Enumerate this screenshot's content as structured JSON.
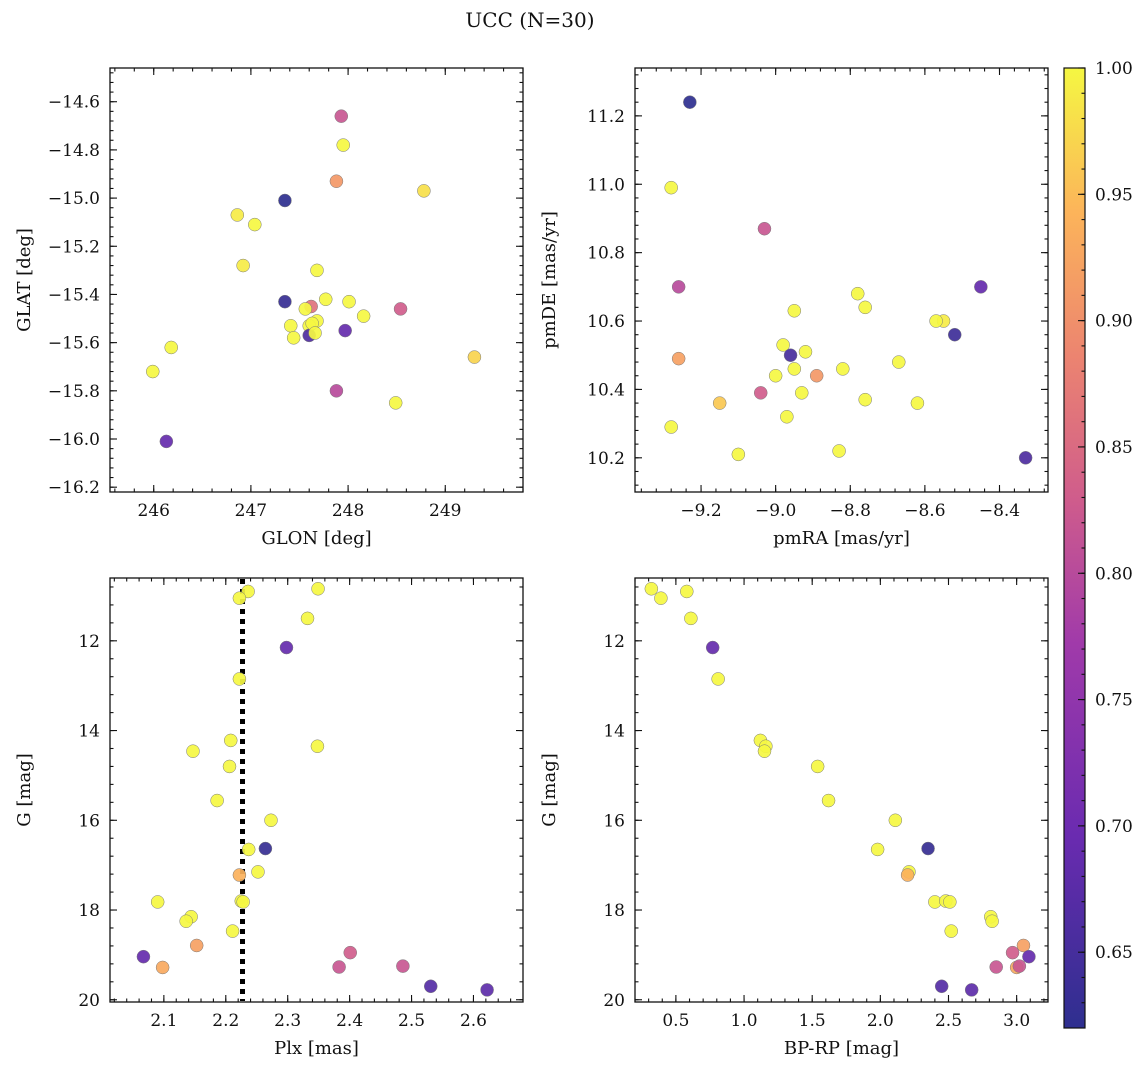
{
  "figure": {
    "title": "UCC (N=30)"
  },
  "colorbar": {
    "min": 0.62,
    "max": 1.0,
    "ticks": [
      0.65,
      0.7,
      0.75,
      0.8,
      0.85,
      0.9,
      0.95,
      1.0
    ],
    "tick_labels": [
      "0.65",
      "0.70",
      "0.75",
      "0.80",
      "0.85",
      "0.90",
      "0.95",
      "1.00"
    ],
    "colormap": "plasma"
  },
  "chart_data": [
    {
      "type": "scatter",
      "id": "sky",
      "xlabel": "GLON [deg]",
      "ylabel": "GLAT [deg]",
      "xlim": [
        245.55,
        249.8
      ],
      "ylim": [
        -16.22,
        -14.46
      ],
      "xticks": [
        246,
        247,
        248,
        249
      ],
      "xtick_labels": [
        "246",
        "247",
        "248",
        "249"
      ],
      "yticks": [
        -16.2,
        -16.0,
        -15.8,
        -15.6,
        -15.4,
        -15.2,
        -15.0,
        -14.8,
        -14.6
      ],
      "ytick_labels": [
        "−16.2",
        "−16.0",
        "−15.8",
        "−15.6",
        "−15.4",
        "−15.2",
        "−15.0",
        "−14.8",
        "−14.6"
      ],
      "points": [
        {
          "x": 247.93,
          "y": -14.66,
          "c": 0.82
        },
        {
          "x": 247.95,
          "y": -14.78,
          "c": 1.0
        },
        {
          "x": 247.88,
          "y": -14.93,
          "c": 0.91
        },
        {
          "x": 248.78,
          "y": -14.97,
          "c": 0.98
        },
        {
          "x": 247.35,
          "y": -15.01,
          "c": 0.62
        },
        {
          "x": 246.86,
          "y": -15.07,
          "c": 0.99
        },
        {
          "x": 247.04,
          "y": -15.11,
          "c": 1.0
        },
        {
          "x": 246.92,
          "y": -15.28,
          "c": 0.99
        },
        {
          "x": 247.68,
          "y": -15.3,
          "c": 1.0
        },
        {
          "x": 247.77,
          "y": -15.42,
          "c": 1.0
        },
        {
          "x": 247.35,
          "y": -15.43,
          "c": 0.63
        },
        {
          "x": 247.62,
          "y": -15.45,
          "c": 0.86
        },
        {
          "x": 247.56,
          "y": -15.46,
          "c": 1.0
        },
        {
          "x": 248.01,
          "y": -15.43,
          "c": 1.0
        },
        {
          "x": 248.54,
          "y": -15.46,
          "c": 0.83
        },
        {
          "x": 248.16,
          "y": -15.49,
          "c": 1.0
        },
        {
          "x": 247.68,
          "y": -15.51,
          "c": 1.0
        },
        {
          "x": 247.6,
          "y": -15.53,
          "c": 1.0
        },
        {
          "x": 247.41,
          "y": -15.53,
          "c": 1.0
        },
        {
          "x": 247.97,
          "y": -15.55,
          "c": 0.69
        },
        {
          "x": 247.6,
          "y": -15.57,
          "c": 0.66
        },
        {
          "x": 247.44,
          "y": -15.58,
          "c": 1.0
        },
        {
          "x": 246.18,
          "y": -15.62,
          "c": 1.0
        },
        {
          "x": 249.3,
          "y": -15.66,
          "c": 0.97
        },
        {
          "x": 245.99,
          "y": -15.72,
          "c": 1.0
        },
        {
          "x": 247.88,
          "y": -15.8,
          "c": 0.8
        },
        {
          "x": 248.49,
          "y": -15.85,
          "c": 1.0
        },
        {
          "x": 246.13,
          "y": -16.01,
          "c": 0.69
        },
        {
          "x": 247.63,
          "y": -15.52,
          "c": 1.0
        },
        {
          "x": 247.66,
          "y": -15.56,
          "c": 1.0
        }
      ]
    },
    {
      "type": "scatter",
      "id": "pm",
      "xlabel": "pmRA [mas/yr]",
      "ylabel": "pmDE [mas/yr]",
      "xlim": [
        -9.377,
        -8.27
      ],
      "ylim": [
        10.1,
        11.34
      ],
      "xticks": [
        -9.2,
        -9.0,
        -8.8,
        -8.6,
        -8.4
      ],
      "xtick_labels": [
        "−9.2",
        "−9.0",
        "−8.8",
        "−8.6",
        "−8.4"
      ],
      "yticks": [
        10.2,
        10.4,
        10.6,
        10.8,
        11.0,
        11.2
      ],
      "ytick_labels": [
        "10.2",
        "10.4",
        "10.6",
        "10.8",
        "11.0",
        "11.2"
      ],
      "points": [
        {
          "x": -9.23,
          "y": 11.24,
          "c": 0.62
        },
        {
          "x": -9.28,
          "y": 10.99,
          "c": 1.0
        },
        {
          "x": -9.03,
          "y": 10.87,
          "c": 0.82
        },
        {
          "x": -9.26,
          "y": 10.7,
          "c": 0.8
        },
        {
          "x": -8.45,
          "y": 10.7,
          "c": 0.69
        },
        {
          "x": -8.78,
          "y": 10.68,
          "c": 1.0
        },
        {
          "x": -8.76,
          "y": 10.64,
          "c": 1.0
        },
        {
          "x": -8.95,
          "y": 10.63,
          "c": 1.0
        },
        {
          "x": -8.55,
          "y": 10.6,
          "c": 0.99
        },
        {
          "x": -8.57,
          "y": 10.6,
          "c": 1.0
        },
        {
          "x": -8.52,
          "y": 10.56,
          "c": 0.64
        },
        {
          "x": -8.98,
          "y": 10.53,
          "c": 1.0
        },
        {
          "x": -8.92,
          "y": 10.51,
          "c": 1.0
        },
        {
          "x": -8.96,
          "y": 10.5,
          "c": 0.65
        },
        {
          "x": -9.26,
          "y": 10.49,
          "c": 0.92
        },
        {
          "x": -8.67,
          "y": 10.48,
          "c": 1.0
        },
        {
          "x": -8.95,
          "y": 10.46,
          "c": 1.0
        },
        {
          "x": -8.82,
          "y": 10.46,
          "c": 1.0
        },
        {
          "x": -9.0,
          "y": 10.44,
          "c": 1.0
        },
        {
          "x": -8.89,
          "y": 10.44,
          "c": 0.91
        },
        {
          "x": -9.04,
          "y": 10.39,
          "c": 0.83
        },
        {
          "x": -8.93,
          "y": 10.39,
          "c": 1.0
        },
        {
          "x": -9.15,
          "y": 10.36,
          "c": 0.96
        },
        {
          "x": -8.76,
          "y": 10.37,
          "c": 1.0
        },
        {
          "x": -8.62,
          "y": 10.36,
          "c": 1.0
        },
        {
          "x": -8.97,
          "y": 10.32,
          "c": 1.0
        },
        {
          "x": -9.28,
          "y": 10.29,
          "c": 1.0
        },
        {
          "x": -8.83,
          "y": 10.22,
          "c": 1.0
        },
        {
          "x": -9.1,
          "y": 10.21,
          "c": 1.0
        },
        {
          "x": -8.33,
          "y": 10.2,
          "c": 0.66
        }
      ]
    },
    {
      "type": "scatter",
      "id": "plx",
      "xlabel": "Plx [mas]",
      "ylabel": "G [mag]",
      "xlim": [
        2.013,
        2.68
      ],
      "ylim": [
        20.05,
        10.6
      ],
      "xticks": [
        2.1,
        2.2,
        2.3,
        2.4,
        2.5,
        2.6
      ],
      "xtick_labels": [
        "2.1",
        "2.2",
        "2.3",
        "2.4",
        "2.5",
        "2.6"
      ],
      "yticks": [
        12,
        14,
        16,
        18,
        20
      ],
      "ytick_labels": [
        "12",
        "14",
        "16",
        "18",
        "20"
      ],
      "vline": 2.227,
      "points": [
        {
          "x": 2.349,
          "y": 10.84,
          "c": 1.0
        },
        {
          "x": 2.236,
          "y": 10.9,
          "c": 1.0
        },
        {
          "x": 2.222,
          "y": 11.05,
          "c": 1.0
        },
        {
          "x": 2.332,
          "y": 11.5,
          "c": 1.0
        },
        {
          "x": 2.298,
          "y": 12.15,
          "c": 0.69
        },
        {
          "x": 2.222,
          "y": 12.85,
          "c": 1.0
        },
        {
          "x": 2.208,
          "y": 14.22,
          "c": 1.0
        },
        {
          "x": 2.348,
          "y": 14.35,
          "c": 1.0
        },
        {
          "x": 2.147,
          "y": 14.46,
          "c": 1.0
        },
        {
          "x": 2.206,
          "y": 14.8,
          "c": 1.0
        },
        {
          "x": 2.186,
          "y": 15.56,
          "c": 1.0
        },
        {
          "x": 2.273,
          "y": 16.0,
          "c": 1.0
        },
        {
          "x": 2.237,
          "y": 16.65,
          "c": 1.0
        },
        {
          "x": 2.264,
          "y": 16.63,
          "c": 0.63
        },
        {
          "x": 2.252,
          "y": 17.15,
          "c": 1.0
        },
        {
          "x": 2.222,
          "y": 17.22,
          "c": 0.94
        },
        {
          "x": 2.09,
          "y": 17.82,
          "c": 1.0
        },
        {
          "x": 2.225,
          "y": 17.8,
          "c": 1.0
        },
        {
          "x": 2.144,
          "y": 18.15,
          "c": 1.0
        },
        {
          "x": 2.136,
          "y": 18.25,
          "c": 1.0
        },
        {
          "x": 2.211,
          "y": 18.47,
          "c": 1.0
        },
        {
          "x": 2.153,
          "y": 18.79,
          "c": 0.92
        },
        {
          "x": 2.401,
          "y": 18.95,
          "c": 0.83
        },
        {
          "x": 2.067,
          "y": 19.04,
          "c": 0.69
        },
        {
          "x": 2.098,
          "y": 19.28,
          "c": 0.93
        },
        {
          "x": 2.383,
          "y": 19.27,
          "c": 0.82
        },
        {
          "x": 2.486,
          "y": 19.25,
          "c": 0.82
        },
        {
          "x": 2.531,
          "y": 19.7,
          "c": 0.67
        },
        {
          "x": 2.622,
          "y": 19.78,
          "c": 0.68
        },
        {
          "x": 2.228,
          "y": 17.82,
          "c": 1.0
        }
      ]
    },
    {
      "type": "scatter",
      "id": "cmd",
      "xlabel": "BP-RP [mag]",
      "ylabel": "G [mag]",
      "xlim": [
        0.2,
        3.23
      ],
      "ylim": [
        20.05,
        10.6
      ],
      "xticks": [
        0.5,
        1.0,
        1.5,
        2.0,
        2.5,
        3.0
      ],
      "xtick_labels": [
        "0.5",
        "1.0",
        "1.5",
        "2.0",
        "2.5",
        "3.0"
      ],
      "yticks": [
        12,
        14,
        16,
        18,
        20
      ],
      "ytick_labels": [
        "12",
        "14",
        "16",
        "18",
        "20"
      ],
      "points": [
        {
          "x": 0.32,
          "y": 10.84,
          "c": 1.0
        },
        {
          "x": 0.58,
          "y": 10.9,
          "c": 1.0
        },
        {
          "x": 0.39,
          "y": 11.05,
          "c": 1.0
        },
        {
          "x": 0.61,
          "y": 11.5,
          "c": 1.0
        },
        {
          "x": 0.77,
          "y": 12.15,
          "c": 0.69
        },
        {
          "x": 0.81,
          "y": 12.85,
          "c": 1.0
        },
        {
          "x": 1.12,
          "y": 14.22,
          "c": 1.0
        },
        {
          "x": 1.16,
          "y": 14.35,
          "c": 1.0
        },
        {
          "x": 1.15,
          "y": 14.46,
          "c": 1.0
        },
        {
          "x": 1.54,
          "y": 14.8,
          "c": 1.0
        },
        {
          "x": 1.62,
          "y": 15.56,
          "c": 1.0
        },
        {
          "x": 2.11,
          "y": 16.0,
          "c": 1.0
        },
        {
          "x": 1.98,
          "y": 16.65,
          "c": 1.0
        },
        {
          "x": 2.35,
          "y": 16.63,
          "c": 0.63
        },
        {
          "x": 2.21,
          "y": 17.15,
          "c": 1.0
        },
        {
          "x": 2.2,
          "y": 17.22,
          "c": 0.94
        },
        {
          "x": 2.4,
          "y": 17.82,
          "c": 1.0
        },
        {
          "x": 2.48,
          "y": 17.8,
          "c": 1.0
        },
        {
          "x": 2.81,
          "y": 18.15,
          "c": 1.0
        },
        {
          "x": 2.82,
          "y": 18.25,
          "c": 1.0
        },
        {
          "x": 2.52,
          "y": 18.47,
          "c": 1.0
        },
        {
          "x": 3.05,
          "y": 18.79,
          "c": 0.92
        },
        {
          "x": 2.97,
          "y": 18.95,
          "c": 0.83
        },
        {
          "x": 3.09,
          "y": 19.04,
          "c": 0.69
        },
        {
          "x": 3.0,
          "y": 19.28,
          "c": 0.93
        },
        {
          "x": 2.85,
          "y": 19.27,
          "c": 0.82
        },
        {
          "x": 3.02,
          "y": 19.25,
          "c": 0.82
        },
        {
          "x": 2.45,
          "y": 19.7,
          "c": 0.67
        },
        {
          "x": 2.67,
          "y": 19.78,
          "c": 0.68
        },
        {
          "x": 2.51,
          "y": 17.82,
          "c": 1.0
        }
      ]
    }
  ]
}
